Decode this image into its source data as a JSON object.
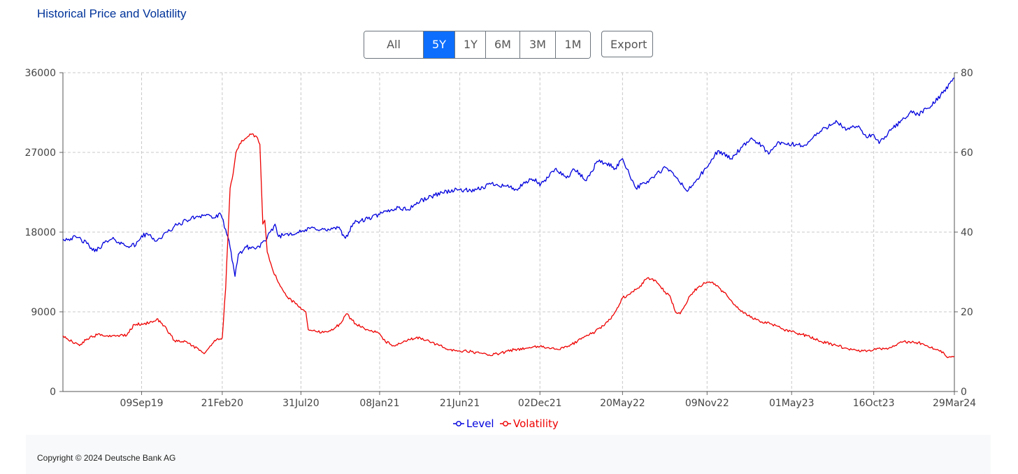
{
  "title": "Historical Price and Volatility",
  "range_buttons": [
    "All Time",
    "5Y",
    "1Y",
    "6M",
    "3M",
    "1M"
  ],
  "active_range": "5Y",
  "export_label": "Export",
  "footer": "Copyright © 2024 Deutsche Bank AG",
  "colors": {
    "level": "#0000dd",
    "volatility": "#ee0000",
    "title": "#003399",
    "active_button": "#0d6efd"
  },
  "chart_data": {
    "type": "line",
    "title": "",
    "x_tick_labels": [
      "09Sep19",
      "21Feb20",
      "31Jul20",
      "08Jan21",
      "21Jun21",
      "02Dec21",
      "20May22",
      "09Nov22",
      "01May23",
      "16Oct23",
      "29Mar24"
    ],
    "x_tick_dates": [
      "2019-09-09",
      "2020-02-21",
      "2020-07-31",
      "2021-01-08",
      "2021-06-21",
      "2021-12-02",
      "2022-05-20",
      "2022-11-09",
      "2023-05-01",
      "2023-10-16",
      "2024-03-29"
    ],
    "x_range": [
      "2019-04-01",
      "2024-03-29"
    ],
    "y_left": {
      "ticks": [
        0,
        9000,
        18000,
        27000,
        36000
      ],
      "ylim": [
        0,
        36000
      ]
    },
    "y_right": {
      "ticks": [
        0,
        20,
        40,
        60,
        80
      ],
      "ylim": [
        0,
        80
      ]
    },
    "grid": true,
    "legend": "bottom-center",
    "series": [
      {
        "name": "Level",
        "axis": "left",
        "color": "#0000dd",
        "points": [
          [
            "2019-04-01",
            17200
          ],
          [
            "2019-05-01",
            17400
          ],
          [
            "2019-05-20",
            16700
          ],
          [
            "2019-06-05",
            15800
          ],
          [
            "2019-06-25",
            16800
          ],
          [
            "2019-07-15",
            17200
          ],
          [
            "2019-08-05",
            16500
          ],
          [
            "2019-08-28",
            16500
          ],
          [
            "2019-09-09",
            17600
          ],
          [
            "2019-09-25",
            17700
          ],
          [
            "2019-10-10",
            17000
          ],
          [
            "2019-11-01",
            18000
          ],
          [
            "2019-11-20",
            18800
          ],
          [
            "2019-12-10",
            19300
          ],
          [
            "2020-01-01",
            19800
          ],
          [
            "2020-01-20",
            20000
          ],
          [
            "2020-02-05",
            19600
          ],
          [
            "2020-02-18",
            20000
          ],
          [
            "2020-02-28",
            18300
          ],
          [
            "2020-03-06",
            17000
          ],
          [
            "2020-03-12",
            14800
          ],
          [
            "2020-03-18",
            13000
          ],
          [
            "2020-03-25",
            15500
          ],
          [
            "2020-04-10",
            16300
          ],
          [
            "2020-05-01",
            16200
          ],
          [
            "2020-05-20",
            17000
          ],
          [
            "2020-06-08",
            18900
          ],
          [
            "2020-06-15",
            17500
          ],
          [
            "2020-07-01",
            17800
          ],
          [
            "2020-07-31",
            18000
          ],
          [
            "2020-08-25",
            18500
          ],
          [
            "2020-09-20",
            18200
          ],
          [
            "2020-10-15",
            18500
          ],
          [
            "2020-10-30",
            17300
          ],
          [
            "2020-11-15",
            19000
          ],
          [
            "2020-12-15",
            19500
          ],
          [
            "2021-01-08",
            20000
          ],
          [
            "2021-02-15",
            20800
          ],
          [
            "2021-03-05",
            20500
          ],
          [
            "2021-04-01",
            21500
          ],
          [
            "2021-05-15",
            22500
          ],
          [
            "2021-06-21",
            22800
          ],
          [
            "2021-07-20",
            22600
          ],
          [
            "2021-08-25",
            23500
          ],
          [
            "2021-09-25",
            23200
          ],
          [
            "2021-10-15",
            22800
          ],
          [
            "2021-11-15",
            24000
          ],
          [
            "2021-11-30",
            23600
          ],
          [
            "2021-12-02",
            23200
          ],
          [
            "2022-01-04",
            25200
          ],
          [
            "2022-01-25",
            24100
          ],
          [
            "2022-02-10",
            25100
          ],
          [
            "2022-03-07",
            23800
          ],
          [
            "2022-03-29",
            26000
          ],
          [
            "2022-04-15",
            25800
          ],
          [
            "2022-05-05",
            25200
          ],
          [
            "2022-05-20",
            26300
          ],
          [
            "2022-06-16",
            23000
          ],
          [
            "2022-07-05",
            23500
          ],
          [
            "2022-08-16",
            25300
          ],
          [
            "2022-09-05",
            24300
          ],
          [
            "2022-09-30",
            22600
          ],
          [
            "2022-10-20",
            24000
          ],
          [
            "2022-11-09",
            25300
          ],
          [
            "2022-12-01",
            27200
          ],
          [
            "2022-12-28",
            26300
          ],
          [
            "2023-01-20",
            27600
          ],
          [
            "2023-02-10",
            28500
          ],
          [
            "2023-03-01",
            27800
          ],
          [
            "2023-03-15",
            26800
          ],
          [
            "2023-04-01",
            28000
          ],
          [
            "2023-05-01",
            27900
          ],
          [
            "2023-05-31",
            27800
          ],
          [
            "2023-06-15",
            28800
          ],
          [
            "2023-07-31",
            30600
          ],
          [
            "2023-08-20",
            29500
          ],
          [
            "2023-09-15",
            30000
          ],
          [
            "2023-10-01",
            28700
          ],
          [
            "2023-10-16",
            29000
          ],
          [
            "2023-10-27",
            28000
          ],
          [
            "2023-11-20",
            29500
          ],
          [
            "2023-12-29",
            31500
          ],
          [
            "2024-01-15",
            31300
          ],
          [
            "2024-02-10",
            32200
          ],
          [
            "2024-03-01",
            33500
          ],
          [
            "2024-03-29",
            35400
          ]
        ]
      },
      {
        "name": "Volatility",
        "axis": "right",
        "color": "#ee0000",
        "points": [
          [
            "2019-04-01",
            14.0
          ],
          [
            "2019-04-20",
            12.5
          ],
          [
            "2019-05-05",
            11.5
          ],
          [
            "2019-05-20",
            13.2
          ],
          [
            "2019-06-10",
            14.2
          ],
          [
            "2019-07-01",
            14.0
          ],
          [
            "2019-07-20",
            14.0
          ],
          [
            "2019-08-10",
            14.2
          ],
          [
            "2019-08-25",
            16.8
          ],
          [
            "2019-09-09",
            17.0
          ],
          [
            "2019-09-25",
            17.2
          ],
          [
            "2019-10-10",
            18.2
          ],
          [
            "2019-10-25",
            16.5
          ],
          [
            "2019-11-15",
            12.8
          ],
          [
            "2019-12-10",
            12.5
          ],
          [
            "2020-01-05",
            10.3
          ],
          [
            "2020-01-15",
            9.5
          ],
          [
            "2020-01-25",
            11.0
          ],
          [
            "2020-02-05",
            12.8
          ],
          [
            "2020-02-14",
            13.0
          ],
          [
            "2020-02-21",
            13.5
          ],
          [
            "2020-02-28",
            26.0
          ],
          [
            "2020-03-08",
            51.0
          ],
          [
            "2020-03-14",
            54.5
          ],
          [
            "2020-03-20",
            60.0
          ],
          [
            "2020-04-01",
            63.0
          ],
          [
            "2020-04-20",
            64.5
          ],
          [
            "2020-05-01",
            64.0
          ],
          [
            "2020-05-08",
            62.0
          ],
          [
            "2020-05-14",
            42.0
          ],
          [
            "2020-05-18",
            43.0
          ],
          [
            "2020-05-23",
            35.0
          ],
          [
            "2020-06-02",
            31.0
          ],
          [
            "2020-06-14",
            27.5
          ],
          [
            "2020-07-01",
            24.0
          ],
          [
            "2020-07-20",
            22.0
          ],
          [
            "2020-08-10",
            20.0
          ],
          [
            "2020-08-15",
            15.5
          ],
          [
            "2020-09-01",
            15.0
          ],
          [
            "2020-09-25",
            15.0
          ],
          [
            "2020-10-20",
            17.0
          ],
          [
            "2020-11-01",
            19.5
          ],
          [
            "2020-11-20",
            17.0
          ],
          [
            "2020-12-15",
            15.5
          ],
          [
            "2021-01-08",
            14.5
          ],
          [
            "2021-01-20",
            12.5
          ],
          [
            "2021-02-05",
            11.5
          ],
          [
            "2021-02-20",
            12.0
          ],
          [
            "2021-03-10",
            13.0
          ],
          [
            "2021-04-01",
            13.5
          ],
          [
            "2021-04-20",
            12.5
          ],
          [
            "2021-05-10",
            11.5
          ],
          [
            "2021-06-01",
            10.5
          ],
          [
            "2021-06-21",
            10.2
          ],
          [
            "2021-07-15",
            10.0
          ],
          [
            "2021-08-20",
            9.2
          ],
          [
            "2021-09-10",
            9.5
          ],
          [
            "2021-10-10",
            10.5
          ],
          [
            "2021-11-15",
            11.0
          ],
          [
            "2021-12-02",
            11.3
          ],
          [
            "2021-12-20",
            11.0
          ],
          [
            "2022-01-10",
            10.5
          ],
          [
            "2022-02-05",
            11.8
          ],
          [
            "2022-03-01",
            13.5
          ],
          [
            "2022-03-25",
            15.0
          ],
          [
            "2022-04-20",
            17.5
          ],
          [
            "2022-05-05",
            20.0
          ],
          [
            "2022-05-20",
            23.5
          ],
          [
            "2022-06-05",
            24.5
          ],
          [
            "2022-06-25",
            26.5
          ],
          [
            "2022-07-10",
            28.5
          ],
          [
            "2022-07-25",
            28.0
          ],
          [
            "2022-08-15",
            25.0
          ],
          [
            "2022-08-25",
            24.0
          ],
          [
            "2022-09-05",
            20.0
          ],
          [
            "2022-09-15",
            19.5
          ],
          [
            "2022-10-05",
            24.0
          ],
          [
            "2022-10-20",
            26.0
          ],
          [
            "2022-11-09",
            27.5
          ],
          [
            "2022-11-25",
            27.0
          ],
          [
            "2022-12-20",
            24.0
          ],
          [
            "2023-01-15",
            20.5
          ],
          [
            "2023-02-01",
            19.0
          ],
          [
            "2023-03-01",
            17.5
          ],
          [
            "2023-03-20",
            17.0
          ],
          [
            "2023-04-15",
            15.5
          ],
          [
            "2023-05-01",
            15.0
          ],
          [
            "2023-06-01",
            14.0
          ],
          [
            "2023-07-01",
            12.5
          ],
          [
            "2023-08-01",
            11.5
          ],
          [
            "2023-09-01",
            10.5
          ],
          [
            "2023-10-01",
            10.0
          ],
          [
            "2023-10-16",
            10.5
          ],
          [
            "2023-11-20",
            11.0
          ],
          [
            "2023-12-10",
            12.5
          ],
          [
            "2024-01-15",
            12.3
          ],
          [
            "2024-02-10",
            11.0
          ],
          [
            "2024-03-01",
            10.3
          ],
          [
            "2024-03-15",
            8.5
          ],
          [
            "2024-03-29",
            8.8
          ]
        ]
      }
    ]
  }
}
